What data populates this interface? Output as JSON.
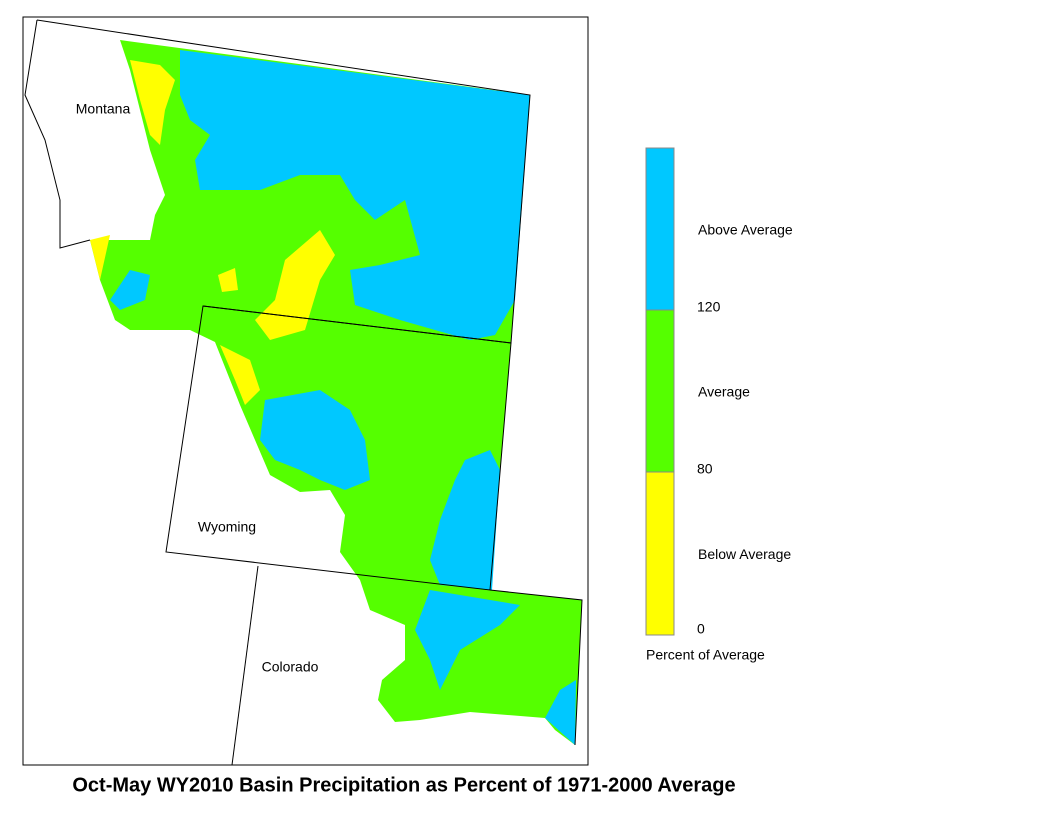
{
  "title": "Oct-May WY2010 Basin Precipitation as Percent of 1971-2000 Average",
  "map": {
    "labels": [
      "Montana",
      "Wyoming",
      "Colorado"
    ]
  },
  "legend": {
    "bands": [
      {
        "label": "Below Average",
        "color": "#ffff00"
      },
      {
        "label": "Average",
        "color": "#55ff00"
      },
      {
        "label": "Above Average",
        "color": "#00c8ff"
      }
    ],
    "ticks": [
      0,
      80,
      120
    ],
    "caption": "Percent of Average"
  }
}
